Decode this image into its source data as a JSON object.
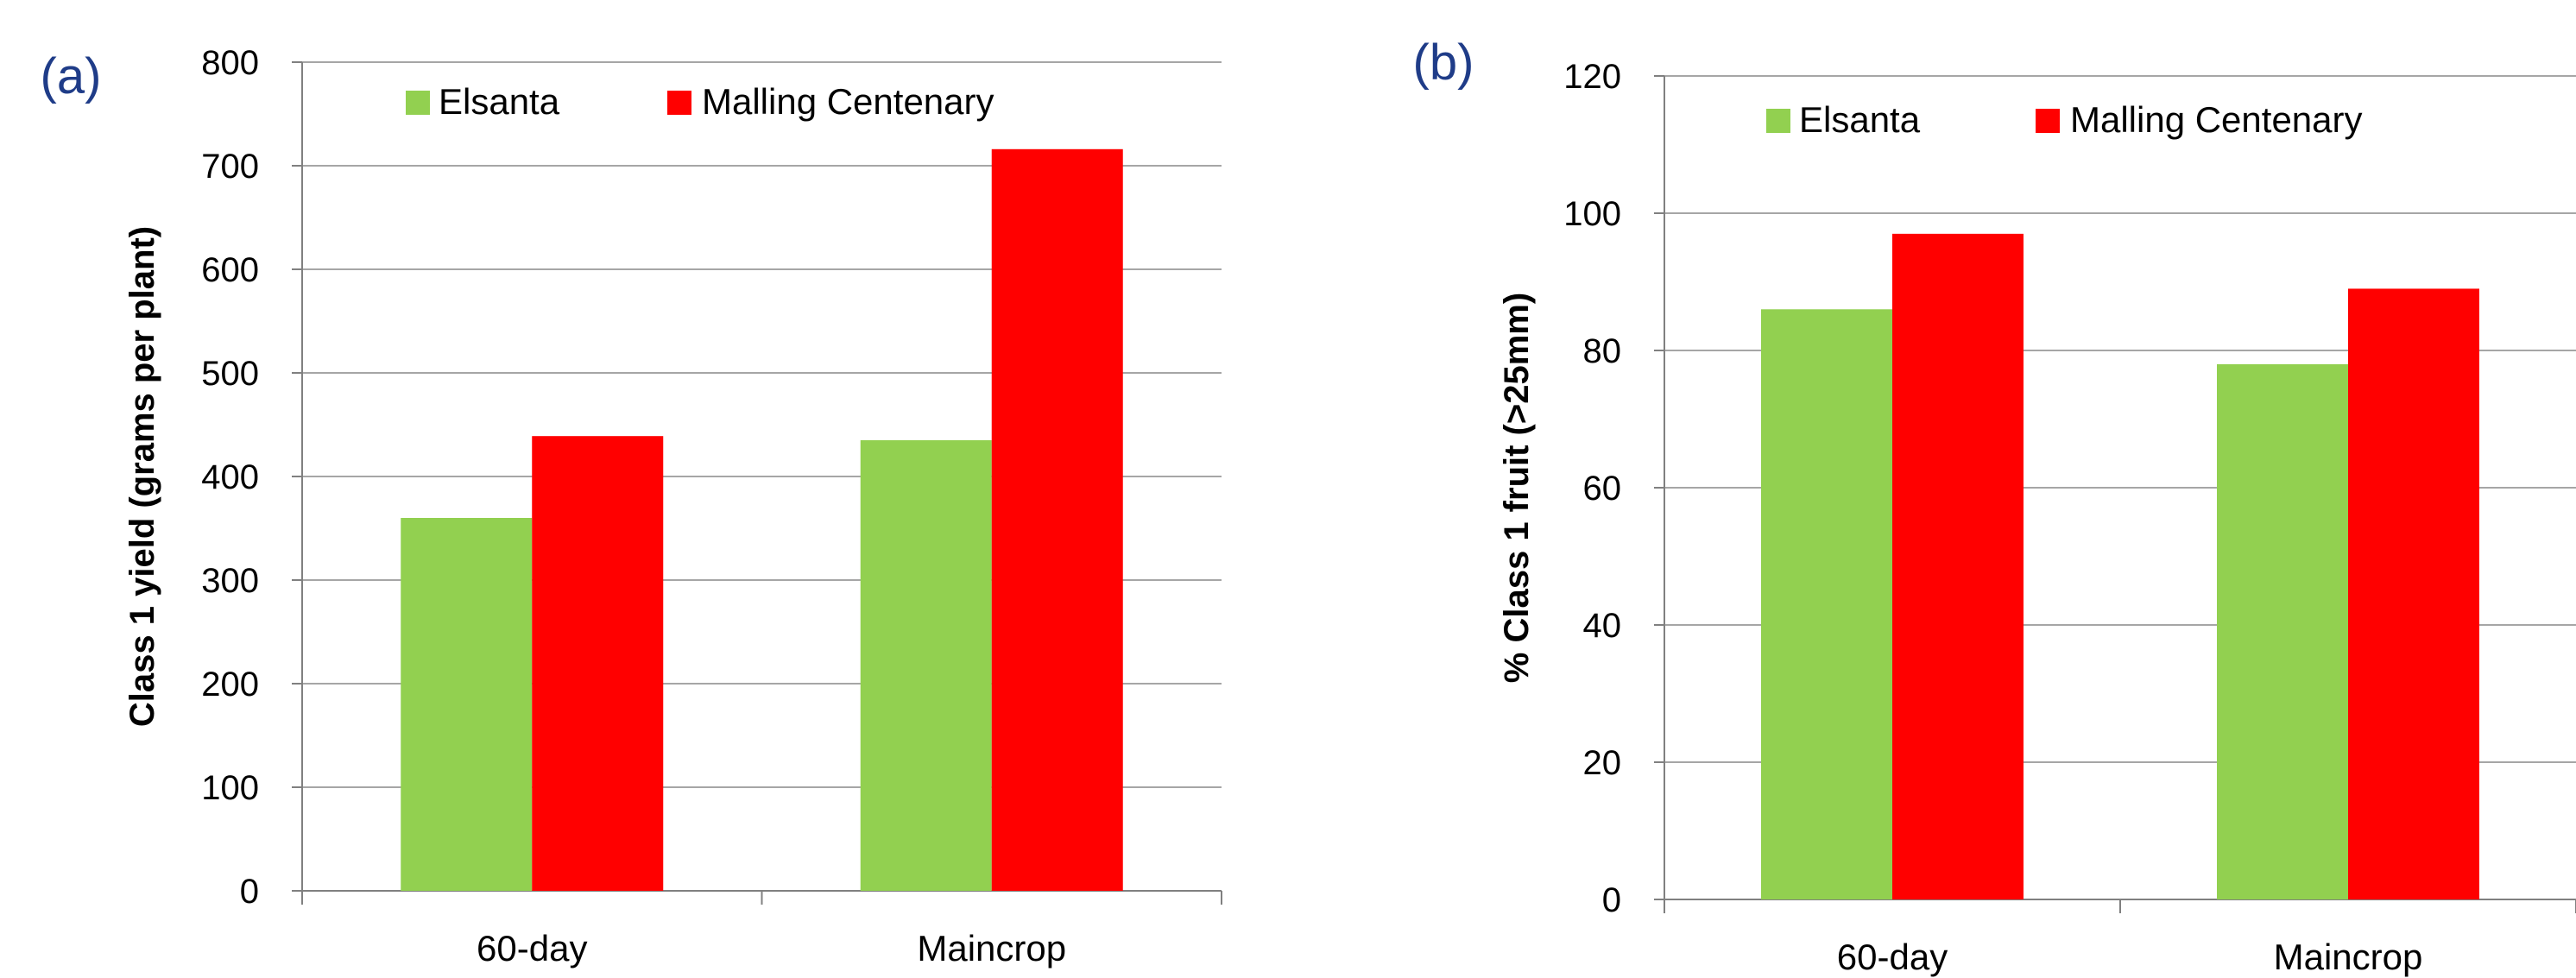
{
  "chart_data": [
    {
      "panel_label": "(a)",
      "type": "bar",
      "categories": [
        "60-day",
        "Maincrop"
      ],
      "series": [
        {
          "name": "Elsanta",
          "color": "#92d050",
          "values": [
            360,
            435
          ]
        },
        {
          "name": "Malling Centenary",
          "color": "#ff0000",
          "values": [
            439,
            716
          ]
        }
      ],
      "ylabel": "Class 1 yield (grams per plant)",
      "ylim": [
        0,
        800
      ],
      "yticks": [
        0,
        100,
        200,
        300,
        400,
        500,
        600,
        700,
        800
      ],
      "grid": true,
      "legend": "top"
    },
    {
      "panel_label": "(b)",
      "type": "bar",
      "categories": [
        "60-day",
        "Maincrop"
      ],
      "series": [
        {
          "name": "Elsanta",
          "color": "#92d050",
          "values": [
            86,
            78
          ]
        },
        {
          "name": "Malling Centenary",
          "color": "#ff0000",
          "values": [
            97,
            89
          ]
        }
      ],
      "ylabel": "% Class 1 fruit (>25mm)",
      "ylim": [
        0,
        120
      ],
      "yticks": [
        0,
        20,
        40,
        60,
        80,
        100,
        120
      ],
      "grid": true,
      "legend": "top"
    }
  ],
  "colors": {
    "panel_label": "#1f3c88",
    "grid": "#a6a6a6",
    "axis": "#808080"
  }
}
